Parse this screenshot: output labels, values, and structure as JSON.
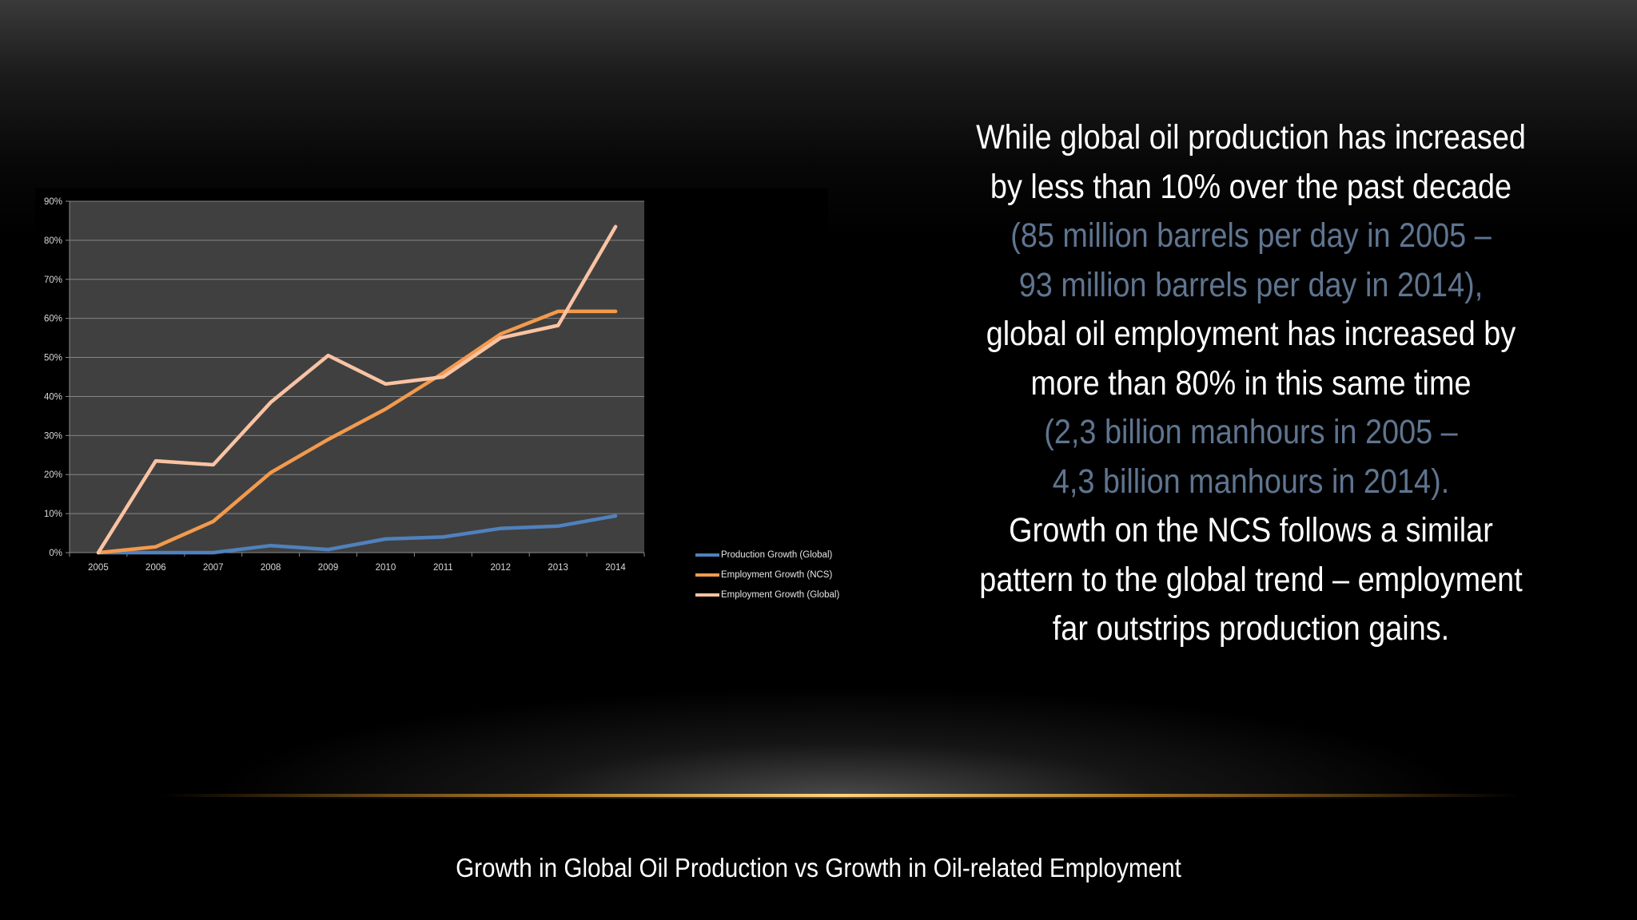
{
  "text_block": {
    "lines": [
      {
        "text": "While global oil production has increased",
        "muted": false
      },
      {
        "text": "by less than 10% over the past decade",
        "muted": false
      },
      {
        "text": "(85 million barrels per day in 2005 –",
        "muted": true
      },
      {
        "text": "93 million barrels per day in 2014),",
        "muted": true
      },
      {
        "text": "global oil employment has increased by",
        "muted": false
      },
      {
        "text": "more than 80% in this same time",
        "muted": false
      },
      {
        "text": "(2,3 billion manhours in 2005 –",
        "muted": true
      },
      {
        "text": "4,3 billion manhours in 2014).",
        "muted": true
      },
      {
        "text": "Growth on the NCS follows a similar",
        "muted": false
      },
      {
        "text": "pattern to the global trend – employment",
        "muted": false
      },
      {
        "text": "far outstrips production gains.",
        "muted": false
      }
    ]
  },
  "caption": "Growth in Global Oil Production vs Growth in Oil-related Employment",
  "colors": {
    "plot_background": "#404040",
    "gridline": "#858585",
    "muted_text": "#5f7590",
    "accent_glow": "#ffd27a"
  },
  "chart_data": {
    "type": "line",
    "x": [
      "2005",
      "2006",
      "2007",
      "2008",
      "2009",
      "2010",
      "2011",
      "2012",
      "2013",
      "2014"
    ],
    "ylim": [
      0,
      90
    ],
    "yticks": [
      0,
      10,
      20,
      30,
      40,
      50,
      60,
      70,
      80,
      90
    ],
    "ytick_labels": [
      "0%",
      "10%",
      "20%",
      "30%",
      "40%",
      "50%",
      "60%",
      "70%",
      "80%",
      "90%"
    ],
    "grid": true,
    "legend_position": "right",
    "title": "",
    "xlabel": "",
    "ylabel": "",
    "series": [
      {
        "name": "Production Growth (Global)",
        "color": "#4f81bd",
        "values": [
          0,
          0,
          0,
          1.8,
          0.8,
          3.5,
          4,
          6.2,
          6.8,
          9.4
        ]
      },
      {
        "name": "Employment Growth (NCS)",
        "color": "#f39a4d",
        "values": [
          0,
          1.5,
          8,
          20.5,
          29,
          36.8,
          46,
          56,
          61.8,
          61.8
        ]
      },
      {
        "name": "Employment Growth (Global)",
        "color": "#f9c3a3",
        "values": [
          0,
          23.5,
          22.5,
          38.5,
          50.5,
          43.2,
          45,
          55,
          58.2,
          83.5
        ]
      }
    ]
  }
}
